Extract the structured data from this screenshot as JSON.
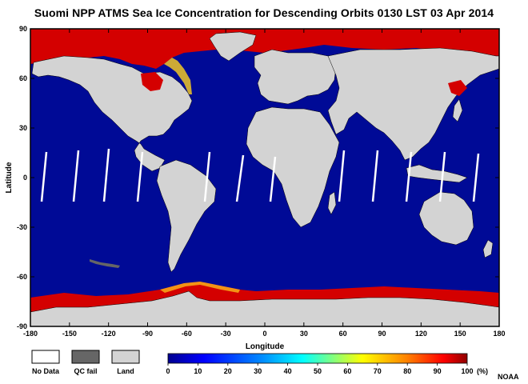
{
  "title": "Suomi NPP ATMS Sea Ice Concentration for Descending Orbits  0130 LST  03 Apr 2014",
  "axes": {
    "xlabel": "Longitude",
    "ylabel": "Latitude",
    "x_ticks": [
      "-180",
      "-150",
      "-120",
      "-90",
      "-60",
      "-30",
      "0",
      "30",
      "60",
      "90",
      "120",
      "150",
      "180"
    ],
    "y_ticks": [
      "90",
      "60",
      "30",
      "0",
      "-30",
      "-60",
      "-90"
    ]
  },
  "legend": {
    "boxes": [
      {
        "label": "No Data",
        "color": "#ffffff"
      },
      {
        "label": "QC fail",
        "color": "#666666"
      },
      {
        "label": "Land",
        "color": "#d3d3d3"
      }
    ],
    "colorbar_ticks": [
      "0",
      "10",
      "20",
      "30",
      "40",
      "50",
      "60",
      "70",
      "80",
      "90",
      "100"
    ],
    "colorbar_unit": "(%)"
  },
  "credit": "NOAA",
  "colors": {
    "ocean": "#000a96",
    "land": "#d3d3d3",
    "ice": "#d40000",
    "ice_edge": "#ffd21e",
    "qc_fail": "#666666",
    "no_data": "#ffffff"
  }
}
